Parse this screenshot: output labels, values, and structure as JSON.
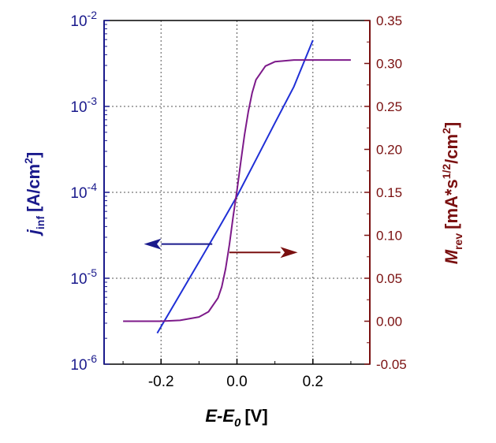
{
  "chart_data": {
    "type": "line",
    "x_axis": {
      "label": "E-E",
      "label_sub": "0",
      "unit": "[V]",
      "range": [
        -0.35,
        0.35
      ],
      "ticks": [
        -0.2,
        0.0,
        0.2
      ],
      "tick_labels": [
        "-0.2",
        "0.0",
        "0.2"
      ]
    },
    "y_left": {
      "label": "j",
      "label_sub": "inf",
      "unit_prefix": "[A/cm",
      "unit_sup": "2",
      "unit_suffix": "]",
      "scale": "log",
      "range": [
        1e-06,
        0.01
      ],
      "ticks": [
        1e-06,
        1e-05,
        0.0001,
        0.001,
        0.01
      ],
      "tick_base": "10",
      "tick_exponents": [
        "-6",
        "-5",
        "-4",
        "-3",
        "-2"
      ],
      "color": "#1a1a8c"
    },
    "y_right": {
      "label": "M",
      "label_sub": "rev",
      "unit_a": "[mA*s",
      "unit_a_sup": "1/2",
      "unit_b": "/cm",
      "unit_b_sup": "2",
      "unit_c": "]",
      "scale": "linear",
      "range": [
        -0.05,
        0.35
      ],
      "ticks": [
        -0.05,
        0.0,
        0.05,
        0.1,
        0.15,
        0.2,
        0.25,
        0.3,
        0.35
      ],
      "tick_labels": [
        "-0.05",
        "0.00",
        "0.05",
        "0.10",
        "0.15",
        "0.20",
        "0.25",
        "0.30",
        "0.35"
      ],
      "color": "#7a1010"
    },
    "grid": true,
    "series": [
      {
        "axis": "left",
        "color": "#1f2fd6",
        "x": [
          -0.21,
          -0.15,
          -0.1,
          -0.05,
          0.0,
          0.05,
          0.1,
          0.15,
          0.2
        ],
        "y": [
          2.3e-06,
          6.5e-06,
          1.55e-05,
          3.7e-05,
          9e-05,
          0.00024,
          0.00064,
          0.0017,
          0.0059
        ]
      },
      {
        "axis": "right",
        "color": "#7d1a8a",
        "x": [
          -0.3,
          -0.2,
          -0.15,
          -0.1,
          -0.075,
          -0.05,
          -0.04,
          -0.03,
          -0.02,
          -0.01,
          0.0,
          0.01,
          0.02,
          0.03,
          0.04,
          0.05,
          0.075,
          0.1,
          0.15,
          0.2,
          0.3
        ],
        "y": [
          0.0,
          0.0,
          0.001,
          0.005,
          0.011,
          0.027,
          0.04,
          0.061,
          0.089,
          0.122,
          0.152,
          0.185,
          0.217,
          0.244,
          0.266,
          0.281,
          0.297,
          0.302,
          0.304,
          0.304,
          0.304
        ]
      }
    ],
    "annotations": [
      {
        "type": "arrow",
        "direction": "left",
        "axis": "left",
        "color": "#1a1a8c",
        "x_from": -0.065,
        "x_to": -0.245,
        "y": 2.5e-05
      },
      {
        "type": "arrow",
        "direction": "right",
        "axis": "right",
        "color": "#7a1010",
        "x_from": -0.02,
        "x_to": 0.16,
        "y": 0.08
      }
    ]
  }
}
